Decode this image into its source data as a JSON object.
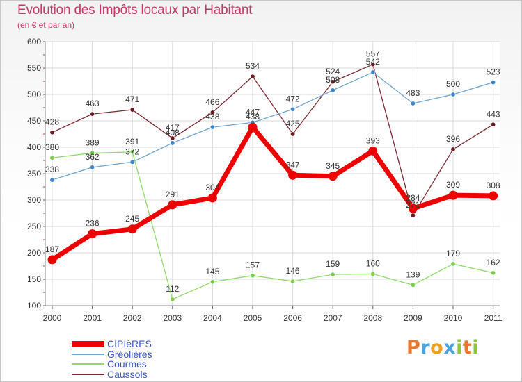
{
  "header": {
    "title": "Evolution des Impôts locaux par Habitant",
    "subtitle": "(en € et par an)"
  },
  "logo": {
    "text": "Proxiti",
    "letters": [
      {
        "char": "P",
        "color": "#e8762c"
      },
      {
        "char": "r",
        "color": "#4aa3df"
      },
      {
        "char": "o",
        "color": "#f0a020"
      },
      {
        "char": "x",
        "color": "#4aa3df"
      },
      {
        "char": "i",
        "color": "#8cc63f"
      },
      {
        "char": "t",
        "color": "#e8762c"
      },
      {
        "char": "i",
        "color": "#8cc63f"
      }
    ]
  },
  "chart_data": {
    "type": "line",
    "x": [
      "2000",
      "2001",
      "2002",
      "2003",
      "2004",
      "2005",
      "2006",
      "2007",
      "2008",
      "2009",
      "2010",
      "2011"
    ],
    "ylim": [
      100,
      600
    ],
    "yticks": [
      100,
      150,
      200,
      250,
      300,
      350,
      400,
      450,
      500,
      550,
      600
    ],
    "grid": true,
    "legend_position": "bottom-left",
    "series": [
      {
        "name": "CIPIèRES",
        "color": "#ee0000",
        "marker": "#ee0000",
        "width": 7,
        "values": [
          187,
          236,
          245,
          291,
          304,
          438,
          347,
          345,
          393,
          284,
          309,
          308
        ],
        "labels": [
          "187",
          "236",
          "245",
          "291",
          "304",
          "438",
          "347",
          "345",
          "393",
          "284",
          "309",
          "308"
        ]
      },
      {
        "name": "Gréolières",
        "color": "#6fa3d0",
        "marker": "#3b86cc",
        "width": 1.3,
        "values": [
          338,
          362,
          372,
          408,
          438,
          447,
          472,
          508,
          542,
          483,
          500,
          523
        ],
        "labels": [
          "338",
          "362",
          "372",
          "408",
          "438",
          "447",
          "472",
          "508",
          "542",
          "483",
          "500",
          "523"
        ]
      },
      {
        "name": "Courmes",
        "color": "#8fdc6a",
        "marker": "#7ccc4e",
        "width": 1.3,
        "values": [
          380,
          389,
          391,
          112,
          145,
          157,
          146,
          159,
          160,
          139,
          179,
          162
        ],
        "labels": [
          "380",
          "389",
          "391",
          "112",
          "145",
          "157",
          "146",
          "159",
          "160",
          "139",
          "179",
          "162"
        ]
      },
      {
        "name": "Caussols",
        "color": "#7a2a32",
        "marker": "#6b1a22",
        "width": 1.3,
        "values": [
          428,
          463,
          471,
          417,
          466,
          534,
          425,
          524,
          557,
          271,
          396,
          443
        ],
        "labels": [
          "428",
          "463",
          "471",
          "417",
          "466",
          "534",
          "425",
          "524",
          "557",
          "271",
          "396",
          "443"
        ]
      }
    ]
  }
}
